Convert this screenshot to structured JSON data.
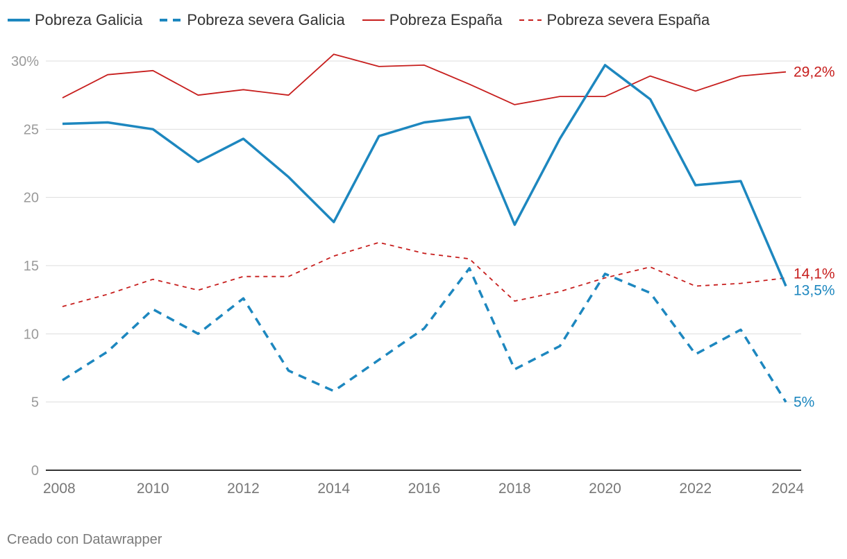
{
  "chart_data": {
    "type": "line",
    "title": "",
    "xlabel": "",
    "ylabel": "",
    "x": [
      2008,
      2009,
      2010,
      2011,
      2012,
      2013,
      2014,
      2015,
      2016,
      2017,
      2018,
      2019,
      2020,
      2021,
      2022,
      2023,
      2024
    ],
    "ylim": [
      0,
      30
    ],
    "y_ticks": [
      0,
      5,
      10,
      15,
      20,
      25,
      30
    ],
    "y_tick_labels": [
      "0",
      "5",
      "10",
      "15",
      "20",
      "25",
      "30%"
    ],
    "x_ticks": [
      2008,
      2010,
      2012,
      2014,
      2016,
      2018,
      2020,
      2022,
      2024
    ],
    "x_tick_labels": [
      "2008",
      "2010",
      "2012",
      "2014",
      "2016",
      "2018",
      "2020",
      "2022",
      "2024"
    ],
    "grid": true,
    "legend_position": "top-left",
    "series": [
      {
        "name": "Pobreza Galicia",
        "color": "#1d87bf",
        "style": "solid-thick",
        "values": [
          25.4,
          25.5,
          25.0,
          22.6,
          24.3,
          21.5,
          18.2,
          24.5,
          25.5,
          25.9,
          18.0,
          24.3,
          29.7,
          27.2,
          20.9,
          21.2,
          13.5
        ],
        "end_label": "13,5%"
      },
      {
        "name": "Pobreza severa Galicia",
        "color": "#1d87bf",
        "style": "dashed-thick",
        "values": [
          6.6,
          8.7,
          11.8,
          10.0,
          12.6,
          7.3,
          5.8,
          8.1,
          10.4,
          14.8,
          7.4,
          9.1,
          14.4,
          13.0,
          8.5,
          10.3,
          5.0
        ],
        "end_label": "5%"
      },
      {
        "name": "Pobreza España",
        "color": "#c71e1d",
        "style": "solid-thin",
        "values": [
          27.3,
          29.0,
          29.3,
          27.5,
          27.9,
          27.5,
          30.5,
          29.6,
          29.7,
          28.3,
          26.8,
          27.4,
          27.4,
          28.9,
          27.8,
          28.9,
          29.2
        ],
        "end_label": "29,2%"
      },
      {
        "name": "Pobreza severa España",
        "color": "#c71e1d",
        "style": "dashed-thin",
        "values": [
          12.0,
          12.9,
          14.0,
          13.2,
          14.2,
          14.2,
          15.7,
          16.7,
          15.9,
          15.5,
          12.4,
          13.1,
          14.1,
          14.9,
          13.5,
          13.7,
          14.1
        ],
        "end_label": "14,1%"
      }
    ]
  },
  "legend": {
    "items": [
      {
        "label": "Pobreza Galicia"
      },
      {
        "label": "Pobreza severa Galicia"
      },
      {
        "label": "Pobreza España"
      },
      {
        "label": "Pobreza severa España"
      }
    ]
  },
  "footer": {
    "credit": "Creado con Datawrapper"
  }
}
